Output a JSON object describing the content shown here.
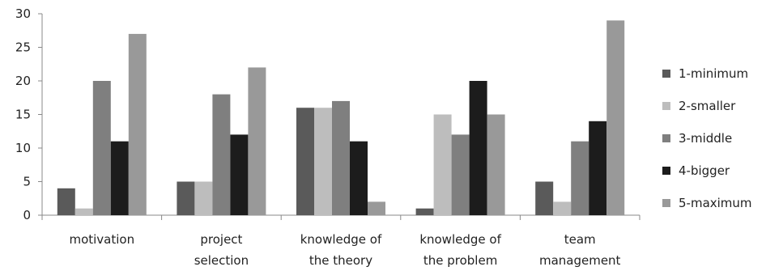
{
  "chart_data": {
    "type": "bar",
    "title": "",
    "xlabel": "",
    "ylabel": "",
    "ylim": [
      0,
      30
    ],
    "yticks": [
      0,
      5,
      10,
      15,
      20,
      25,
      30
    ],
    "grid": false,
    "legend_position": "right",
    "categories": [
      [
        "motivation"
      ],
      [
        "project",
        "selection"
      ],
      [
        "knowledge of",
        "the theory"
      ],
      [
        "knowledge of",
        "the problem"
      ],
      [
        "team",
        "management"
      ]
    ],
    "series": [
      {
        "name": "1-minimum",
        "color": "#5a5a5a",
        "values": [
          4,
          5,
          16,
          1,
          5
        ]
      },
      {
        "name": "2-smaller",
        "color": "#bdbdbd",
        "values": [
          1,
          5,
          16,
          15,
          2
        ]
      },
      {
        "name": "3-middle",
        "color": "#7f7f7f",
        "values": [
          20,
          18,
          17,
          12,
          11
        ]
      },
      {
        "name": "4-bigger",
        "color": "#1c1c1c",
        "values": [
          11,
          12,
          11,
          20,
          14
        ]
      },
      {
        "name": "5-maximum",
        "color": "#999999",
        "values": [
          27,
          22,
          2,
          15,
          29
        ]
      }
    ]
  }
}
